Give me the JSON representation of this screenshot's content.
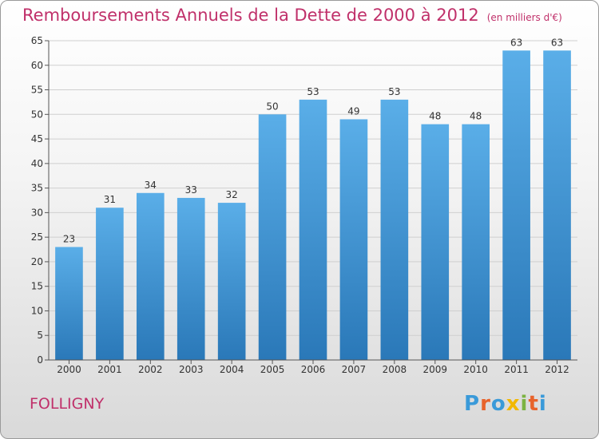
{
  "header": {
    "title": "Remboursements Annuels de la Dette de 2000 à 2012",
    "subtitle": "(en milliers d'€)"
  },
  "footer": {
    "commune": "FOLLIGNY",
    "logo_letters": [
      "P",
      "r",
      "o",
      "x",
      "i",
      "t",
      "i"
    ],
    "logo_colors": [
      "#3a9ad9",
      "#e8632b",
      "#3a9ad9",
      "#f2b800",
      "#7cb342",
      "#e8632b",
      "#3a9ad9"
    ]
  },
  "colors": {
    "bar_top": "#5aaee8",
    "bar_bottom": "#2a78b8",
    "grid": "#cfcfcf",
    "axis": "#555555"
  },
  "chart_data": {
    "type": "bar",
    "categories": [
      "2000",
      "2001",
      "2002",
      "2003",
      "2004",
      "2005",
      "2006",
      "2007",
      "2008",
      "2009",
      "2010",
      "2011",
      "2012"
    ],
    "values": [
      23,
      31,
      34,
      33,
      32,
      50,
      53,
      49,
      53,
      48,
      48,
      63,
      63
    ],
    "ylim": [
      0,
      65
    ],
    "yticks": [
      0,
      5,
      10,
      15,
      20,
      25,
      30,
      35,
      40,
      45,
      50,
      55,
      60,
      65
    ],
    "grid": true
  }
}
